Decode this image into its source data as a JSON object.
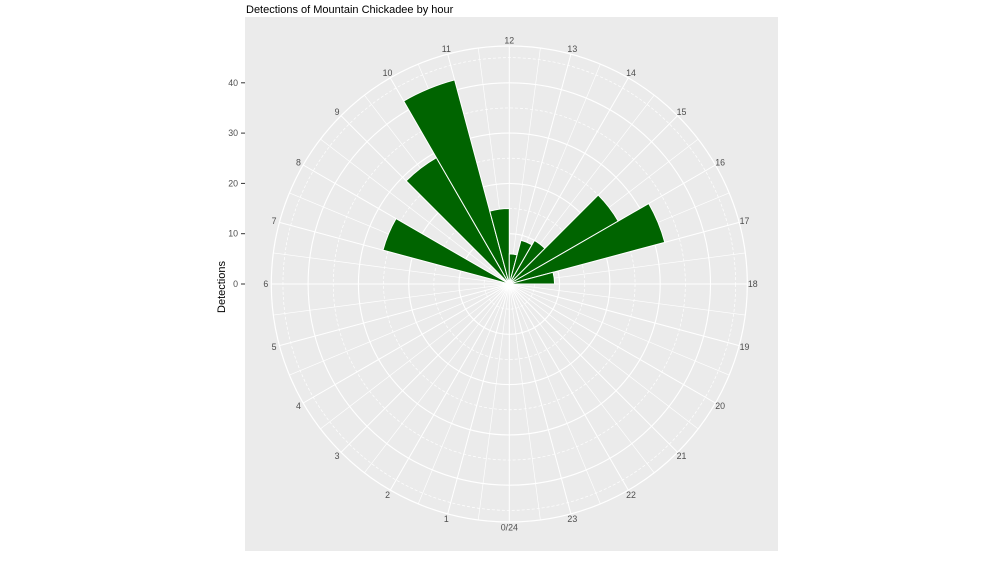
{
  "chart_data": {
    "type": "bar",
    "coord": "polar",
    "orientation": "hours clockwise, 0 at bottom, 12 at top, 6 left, 18 right",
    "title": "Detections of Mountain Chickadee by hour",
    "ylabel": "Detections",
    "xlabel": "",
    "categories": [
      "0",
      "1",
      "2",
      "3",
      "4",
      "5",
      "6",
      "7",
      "8",
      "9",
      "10",
      "11",
      "12",
      "13",
      "14",
      "15",
      "16",
      "17",
      "18",
      "19",
      "20",
      "21",
      "22",
      "23"
    ],
    "values": [
      0,
      0,
      0,
      0,
      0,
      0,
      0,
      26,
      0,
      29,
      42,
      15,
      6,
      9,
      10,
      25,
      32,
      9,
      0,
      0,
      0,
      0,
      0,
      0
    ],
    "hour_labels": [
      "0/24",
      "1",
      "2",
      "3",
      "4",
      "5",
      "6",
      "7",
      "8",
      "9",
      "10",
      "11",
      "12",
      "13",
      "14",
      "15",
      "16",
      "17",
      "18",
      "19",
      "20",
      "21",
      "22",
      "23"
    ],
    "r_axis": {
      "ticks": [
        0,
        10,
        20,
        30,
        40
      ],
      "minor_ticks": [
        5,
        15,
        25,
        35,
        45
      ],
      "lim": [
        0,
        47.3
      ]
    },
    "grid": true,
    "legend": "none",
    "colors": {
      "bar": "#006400",
      "bar_border": "#ffffff",
      "panel": "#ebebeb",
      "grid": "#ffffff",
      "axis_text": "#4d4d4d",
      "tick_mark": "#333333",
      "title": "#000000"
    }
  }
}
